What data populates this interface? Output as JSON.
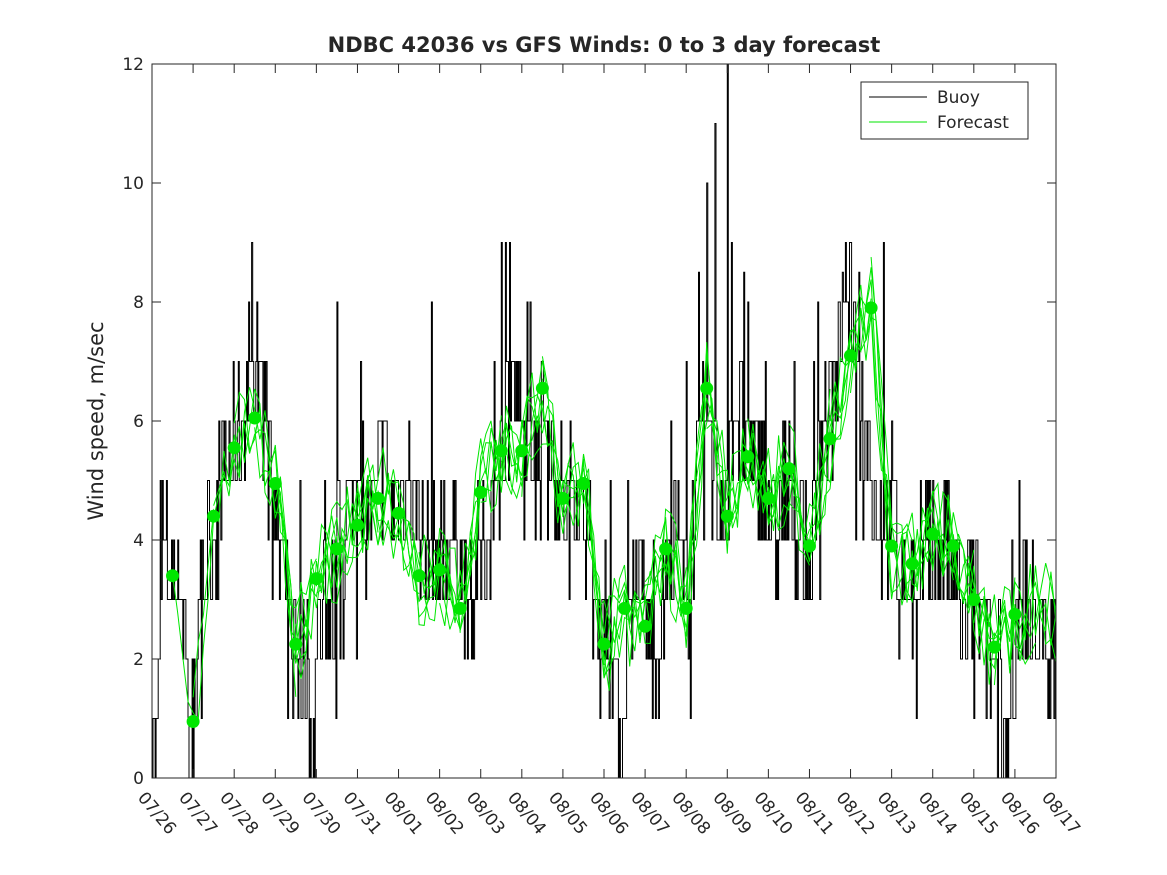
{
  "chart_data": {
    "type": "line",
    "title": "NDBC 42036 vs GFS Winds: 0 to 3 day forecast",
    "xlabel": "",
    "ylabel": "Wind speed, m/sec",
    "ylim": [
      0,
      12
    ],
    "yticks": [
      0,
      2,
      4,
      6,
      8,
      10,
      12
    ],
    "xlim": [
      0,
      22
    ],
    "xticks": [
      "07/26",
      "07/27",
      "07/28",
      "07/29",
      "07/30",
      "07/31",
      "08/01",
      "08/02",
      "08/03",
      "08/04",
      "08/05",
      "08/06",
      "08/07",
      "08/08",
      "08/09",
      "08/10",
      "08/11",
      "08/12",
      "08/13",
      "08/14",
      "08/15",
      "08/16",
      "08/17"
    ],
    "legend": {
      "position": "top-right",
      "entries": [
        "Buoy",
        "Forecast"
      ]
    },
    "colors": {
      "buoy": "#000000",
      "forecast": "#00e600",
      "marker": "#00e600",
      "axis": "#262626"
    },
    "buoy_anchors": [
      [
        0,
        1.5
      ],
      [
        0.1,
        0
      ],
      [
        0.25,
        4
      ],
      [
        0.5,
        3.5
      ],
      [
        0.8,
        3
      ],
      [
        0.9,
        0
      ],
      [
        1,
        1
      ],
      [
        1.2,
        3
      ],
      [
        1.4,
        4
      ],
      [
        1.7,
        4.8
      ],
      [
        1.9,
        5.5
      ],
      [
        2.2,
        6
      ],
      [
        2.4,
        6.5
      ],
      [
        2.6,
        7
      ],
      [
        2.8,
        6.5
      ],
      [
        3,
        4.5
      ],
      [
        3.2,
        3
      ],
      [
        3.5,
        2
      ],
      [
        3.7,
        1.8
      ],
      [
        3.9,
        0.3
      ],
      [
        4.1,
        3
      ],
      [
        4.3,
        2.5
      ],
      [
        4.5,
        3.5
      ],
      [
        4.8,
        4.5
      ],
      [
        5,
        5
      ],
      [
        5.3,
        4.6
      ],
      [
        5.6,
        5
      ],
      [
        5.9,
        4.8
      ],
      [
        6.2,
        5.2
      ],
      [
        6.5,
        4.3
      ],
      [
        6.8,
        3.8
      ],
      [
        7,
        3.5
      ],
      [
        7.3,
        4
      ],
      [
        7.6,
        3.2
      ],
      [
        7.8,
        3
      ],
      [
        8.1,
        4
      ],
      [
        8.4,
        4.5
      ],
      [
        8.6,
        6
      ],
      [
        8.8,
        6.5
      ],
      [
        9,
        5.5
      ],
      [
        9.3,
        5.8
      ],
      [
        9.6,
        6.5
      ],
      [
        9.8,
        5
      ],
      [
        10,
        4.5
      ],
      [
        10.3,
        5
      ],
      [
        10.6,
        4
      ],
      [
        10.8,
        3
      ],
      [
        11,
        3
      ],
      [
        11.2,
        2
      ],
      [
        11.4,
        0.8
      ],
      [
        11.6,
        2.5
      ],
      [
        11.8,
        3.5
      ],
      [
        12,
        3
      ],
      [
        12.2,
        2
      ],
      [
        12.4,
        2.5
      ],
      [
        12.6,
        3.5
      ],
      [
        12.8,
        4
      ],
      [
        13,
        3
      ],
      [
        13.2,
        4.5
      ],
      [
        13.4,
        5.5
      ],
      [
        13.6,
        6
      ],
      [
        13.8,
        4.5
      ],
      [
        14,
        5
      ],
      [
        14.2,
        6.5
      ],
      [
        14.4,
        5.5
      ],
      [
        14.6,
        5
      ],
      [
        14.8,
        5.5
      ],
      [
        15,
        4.5
      ],
      [
        15.2,
        4
      ],
      [
        15.4,
        5
      ],
      [
        15.6,
        4.5
      ],
      [
        15.8,
        4
      ],
      [
        16,
        3.5
      ],
      [
        16.2,
        5
      ],
      [
        16.4,
        6
      ],
      [
        16.6,
        6.5
      ],
      [
        16.8,
        7.5
      ],
      [
        17,
        7.8
      ],
      [
        17.2,
        6.5
      ],
      [
        17.4,
        5.5
      ],
      [
        17.6,
        4.5
      ],
      [
        17.8,
        4
      ],
      [
        18,
        4.5
      ],
      [
        18.2,
        3.5
      ],
      [
        18.4,
        3.5
      ],
      [
        18.6,
        2
      ],
      [
        18.8,
        4
      ],
      [
        19,
        3.5
      ],
      [
        19.2,
        4
      ],
      [
        19.4,
        3.5
      ],
      [
        19.6,
        3
      ],
      [
        19.8,
        2.5
      ],
      [
        20,
        3.5
      ],
      [
        20.2,
        2.5
      ],
      [
        20.4,
        2
      ],
      [
        20.6,
        1.5
      ],
      [
        20.8,
        0.5
      ],
      [
        21,
        2
      ],
      [
        21.2,
        3
      ],
      [
        21.4,
        2.5
      ],
      [
        21.6,
        2.5
      ],
      [
        21.8,
        2
      ]
    ],
    "buoy_spikes": [
      [
        3.6,
        5
      ],
      [
        4.5,
        8
      ],
      [
        6.8,
        8
      ],
      [
        8.5,
        9
      ],
      [
        8.6,
        9
      ],
      [
        8.7,
        9
      ],
      [
        13,
        7
      ],
      [
        13.3,
        8.5
      ],
      [
        13.5,
        10
      ],
      [
        13.7,
        11
      ],
      [
        14,
        12
      ],
      [
        14.1,
        9
      ],
      [
        14.4,
        8.5
      ],
      [
        16.2,
        8
      ],
      [
        16.8,
        8.5
      ],
      [
        17,
        9
      ],
      [
        17.2,
        8.5
      ],
      [
        17.8,
        9
      ],
      [
        20,
        1
      ],
      [
        21.1,
        5
      ]
    ],
    "forecast_points": [
      [
        0.5,
        3.4
      ],
      [
        1,
        0.95
      ],
      [
        1.5,
        4.4
      ],
      [
        2,
        5.55
      ],
      [
        2.5,
        6.05
      ],
      [
        3,
        4.95
      ],
      [
        3.5,
        2.25
      ],
      [
        4,
        3.35
      ],
      [
        4.5,
        3.85
      ],
      [
        5,
        4.25
      ],
      [
        5.5,
        4.7
      ],
      [
        6,
        4.45
      ],
      [
        6.5,
        3.4
      ],
      [
        7,
        3.5
      ],
      [
        7.5,
        2.85
      ],
      [
        8,
        4.8
      ],
      [
        8.5,
        5.5
      ],
      [
        9,
        5.5
      ],
      [
        9.5,
        6.55
      ],
      [
        10,
        4.7
      ],
      [
        10.5,
        4.95
      ],
      [
        11,
        2.25
      ],
      [
        11.5,
        2.85
      ],
      [
        12,
        2.55
      ],
      [
        12.5,
        3.85
      ],
      [
        13,
        2.85
      ],
      [
        13.5,
        6.55
      ],
      [
        14,
        4.4
      ],
      [
        14.5,
        5.4
      ],
      [
        15,
        4.7
      ],
      [
        15.5,
        5.2
      ],
      [
        16,
        3.9
      ],
      [
        16.5,
        5.7
      ],
      [
        17,
        7.1
      ],
      [
        17.5,
        7.9
      ],
      [
        18,
        3.9
      ],
      [
        18.5,
        3.6
      ],
      [
        19,
        4.1
      ],
      [
        19.5,
        3.9
      ],
      [
        20,
        3
      ],
      [
        20.5,
        2.2
      ],
      [
        21,
        2.75
      ]
    ]
  }
}
